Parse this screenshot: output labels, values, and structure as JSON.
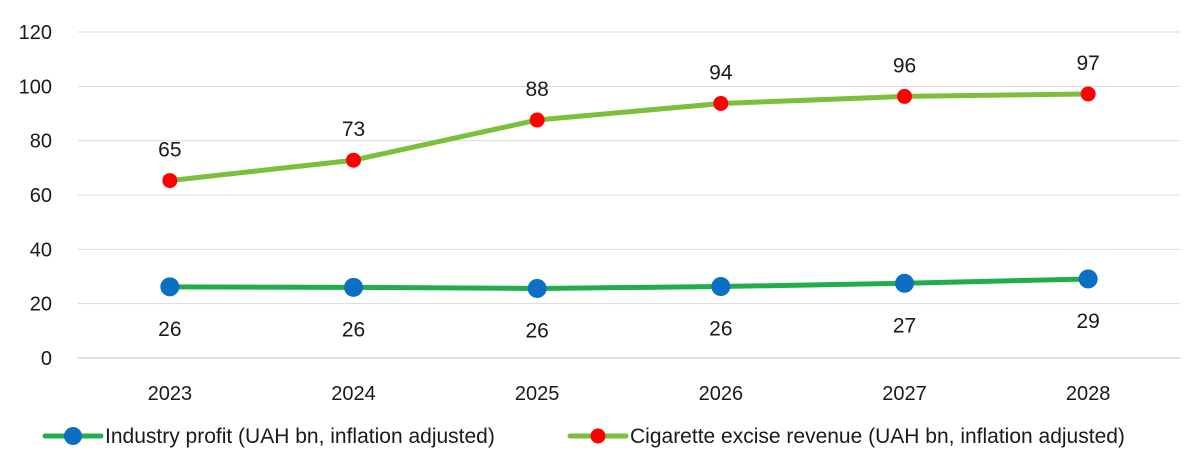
{
  "chart_data": {
    "type": "line",
    "title": "",
    "xlabel": "",
    "ylabel": "",
    "categories": [
      "2023",
      "2024",
      "2025",
      "2026",
      "2027",
      "2028"
    ],
    "ylim": [
      0,
      120
    ],
    "yticks": [
      0,
      20,
      40,
      60,
      80,
      100,
      120
    ],
    "grid": "horizontal",
    "legend_position": "bottom",
    "series": [
      {
        "name": "Industry profit (UAH bn, inflation adjusted)",
        "values": [
          26.2,
          26.0,
          25.6,
          26.3,
          27.5,
          29.1
        ],
        "labels": [
          "26",
          "26",
          "26",
          "26",
          "27",
          "29"
        ],
        "line_color": "#1fae4a",
        "marker_color": "#0b6fc4",
        "label_position": "below"
      },
      {
        "name": "Cigarette excise revenue (UAH bn, inflation adjusted)",
        "values": [
          65.3,
          72.8,
          87.6,
          93.7,
          96.3,
          97.2
        ],
        "labels": [
          "65",
          "73",
          "88",
          "94",
          "96",
          "97"
        ],
        "line_color": "#7cbf3a",
        "marker_color": "#ff0000",
        "label_position": "above"
      }
    ]
  }
}
